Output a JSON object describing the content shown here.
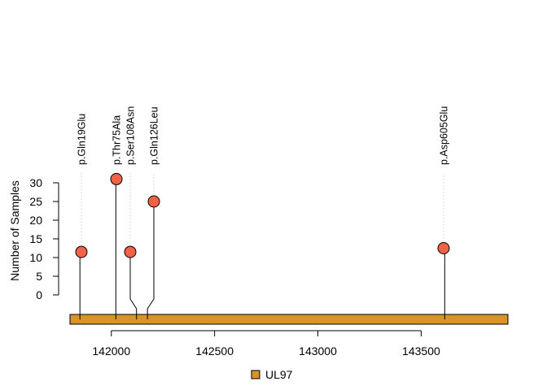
{
  "chart_data": {
    "type": "lollipop",
    "ylabel": "Number of Samples",
    "xlabel": "",
    "ylim": [
      0,
      30
    ],
    "y_ticks": [
      0,
      5,
      10,
      15,
      20,
      25,
      30
    ],
    "xlim": [
      141800,
      143920
    ],
    "x_ticks": [
      142000,
      142500,
      143000,
      143500
    ],
    "x_tick_labels": [
      "142000",
      "142500",
      "143000",
      "143500"
    ],
    "gene": {
      "name": "UL97",
      "start": 141800,
      "end": 143920,
      "color": "#D69429"
    },
    "mutations": [
      {
        "label": "p.Gln19Glu",
        "position": 141848,
        "count": 11.5
      },
      {
        "label": "p.Thr75Ala",
        "position": 142022,
        "count": 31
      },
      {
        "label": "p.Ser108Asn",
        "position": 142122,
        "count": 11.5
      },
      {
        "label": "p.Gln126Leu",
        "position": 142175,
        "count": 25
      },
      {
        "label": "p.Asp605Glu",
        "position": 143614,
        "count": 12.5
      }
    ],
    "marker_color": "#F26246",
    "legend": [
      {
        "name": "UL97",
        "color": "#D69429"
      }
    ],
    "legend_position": "bottom-center"
  }
}
